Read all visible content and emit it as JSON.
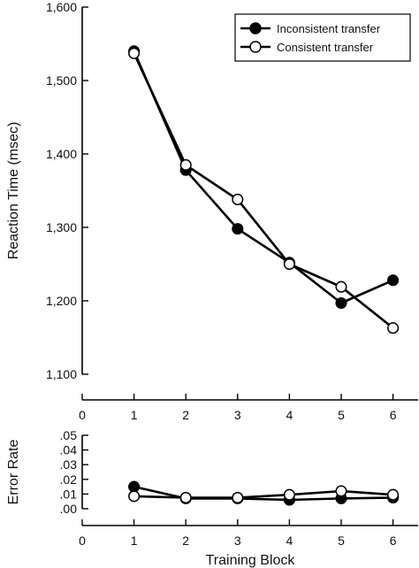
{
  "chart_data": [
    {
      "type": "line",
      "ylabel": "Reaction Time (msec)",
      "xlim": [
        0,
        6.5
      ],
      "ylim": [
        1100,
        1600
      ],
      "x_ticks": [
        0,
        1,
        2,
        3,
        4,
        5,
        6
      ],
      "y_ticks": [
        1100,
        1200,
        1300,
        1400,
        1500,
        1600
      ],
      "y_tick_labels": [
        "1,100",
        "1,200",
        "1,300",
        "1,400",
        "1,500",
        "1,600"
      ],
      "legend_position": "top-right",
      "x": [
        1,
        2,
        3,
        4,
        5,
        6
      ],
      "series": [
        {
          "name": "Inconsistent transfer",
          "marker": "filled",
          "values": [
            1540,
            1378,
            1298,
            1252,
            1197,
            1228
          ]
        },
        {
          "name": "Consistent transfer",
          "marker": "open",
          "values": [
            1537,
            1385,
            1338,
            1250,
            1219,
            1163
          ]
        }
      ]
    },
    {
      "type": "line",
      "ylabel": "Error Rate",
      "xlabel": "Training Block",
      "xlim": [
        0,
        6.5
      ],
      "ylim": [
        0,
        0.05
      ],
      "x_ticks": [
        0,
        1,
        2,
        3,
        4,
        5,
        6
      ],
      "y_ticks": [
        0,
        0.01,
        0.02,
        0.03,
        0.04,
        0.05
      ],
      "y_tick_labels": [
        ".00",
        ".01",
        ".02",
        ".03",
        ".04",
        ".05"
      ],
      "x": [
        1,
        2,
        3,
        4,
        5,
        6
      ],
      "series": [
        {
          "name": "Inconsistent transfer",
          "marker": "filled",
          "values": [
            0.015,
            0.007,
            0.007,
            0.006,
            0.007,
            0.0075
          ]
        },
        {
          "name": "Consistent transfer",
          "marker": "open",
          "values": [
            0.0085,
            0.0075,
            0.0075,
            0.0095,
            0.012,
            0.0095
          ]
        }
      ]
    }
  ]
}
